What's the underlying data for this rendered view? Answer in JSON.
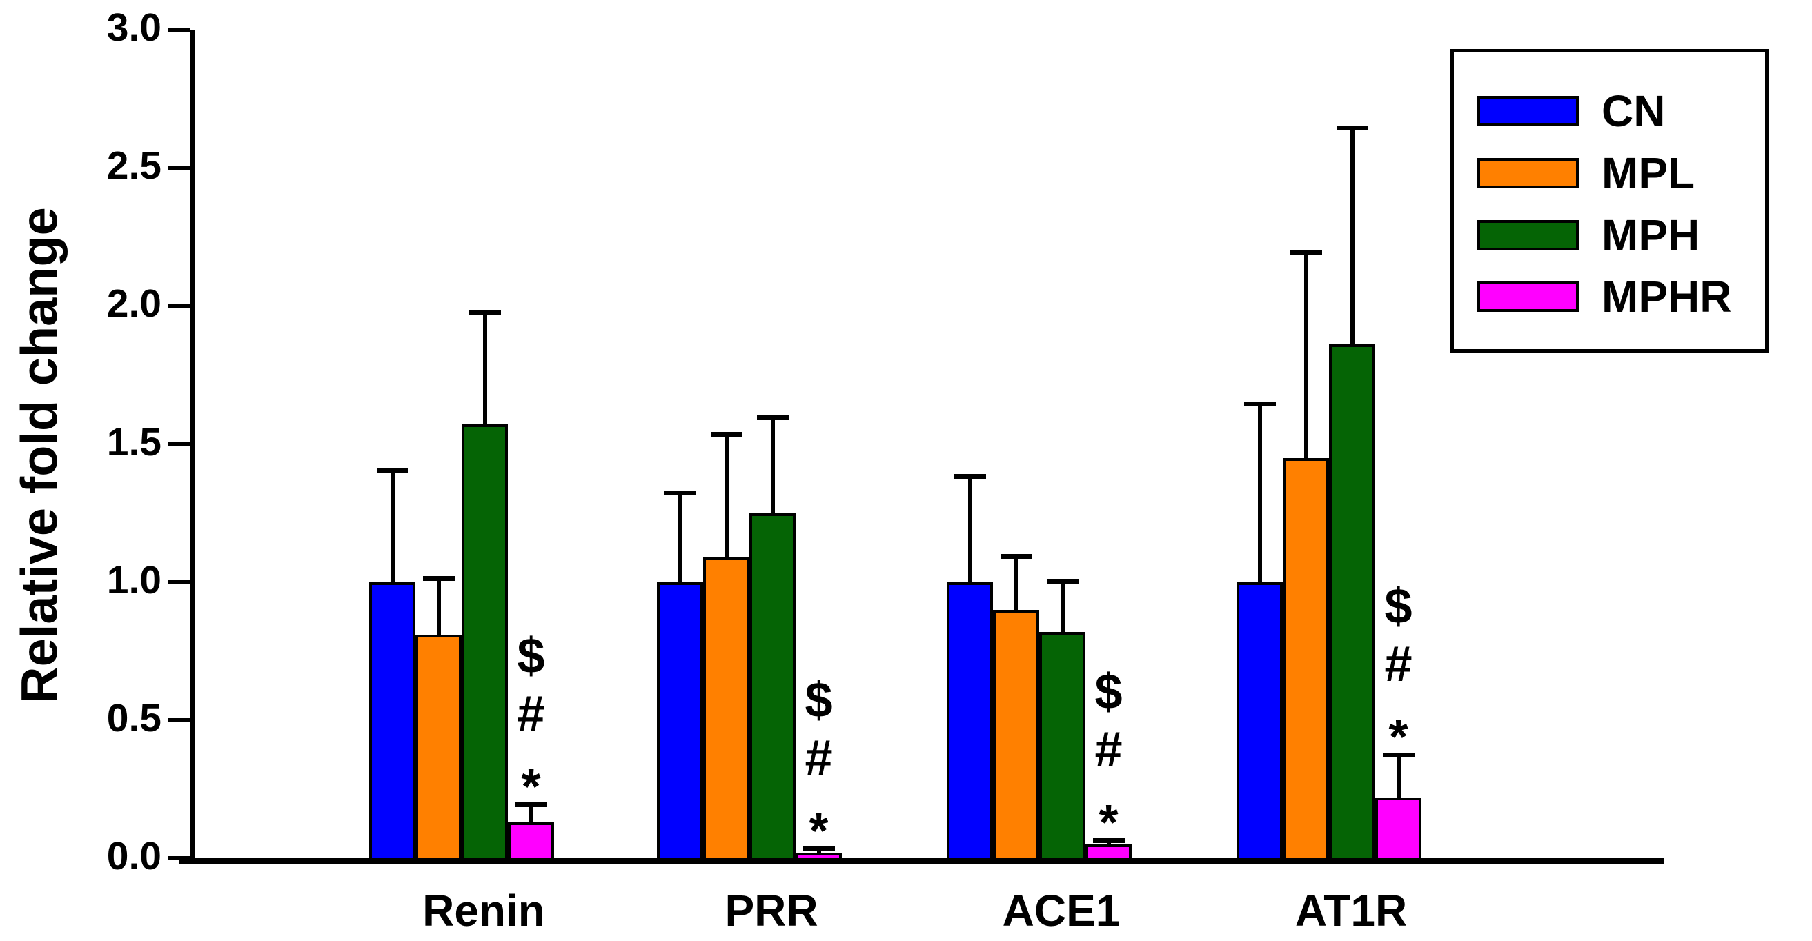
{
  "figure": {
    "background": "#ffffff",
    "axis_color": "#000000",
    "text_color": "#000000"
  },
  "chart_data": {
    "type": "bar",
    "title": "",
    "xlabel": "",
    "ylabel": "Relative fold change",
    "categories": [
      "Renin",
      "PRR",
      "ACE1",
      "AT1R"
    ],
    "series": [
      {
        "name": "CN",
        "color": "#0000FF",
        "values": [
          1.0,
          1.0,
          1.0,
          1.0
        ],
        "error_sd": [
          0.41,
          0.33,
          0.39,
          0.65
        ]
      },
      {
        "name": "MPL",
        "color": "#FF8000",
        "values": [
          0.81,
          1.09,
          0.9,
          1.45
        ],
        "error_sd": [
          0.21,
          0.45,
          0.2,
          0.75
        ]
      },
      {
        "name": "MPH",
        "color": "#056405",
        "values": [
          1.57,
          1.25,
          0.82,
          1.86
        ],
        "error_sd": [
          0.41,
          0.35,
          0.19,
          0.79
        ]
      },
      {
        "name": "MPHR",
        "color": "#FF00FF",
        "values": [
          0.13,
          0.02,
          0.05,
          0.22
        ],
        "error_sd": [
          0.07,
          0.02,
          0.02,
          0.16
        ]
      }
    ],
    "ylim": [
      0,
      3
    ],
    "yticks": [
      "0.0",
      "0.5",
      "1.0",
      "1.5",
      "2.0",
      "2.5",
      "3.0"
    ],
    "grid": false,
    "error_bars": "upper-only",
    "legend_position": "top-right",
    "significance": {
      "series": "MPHR",
      "symbols_top_to_bottom": [
        "$",
        "#",
        "*"
      ],
      "categories": [
        "Renin",
        "PRR",
        "ACE1",
        "AT1R"
      ]
    }
  }
}
